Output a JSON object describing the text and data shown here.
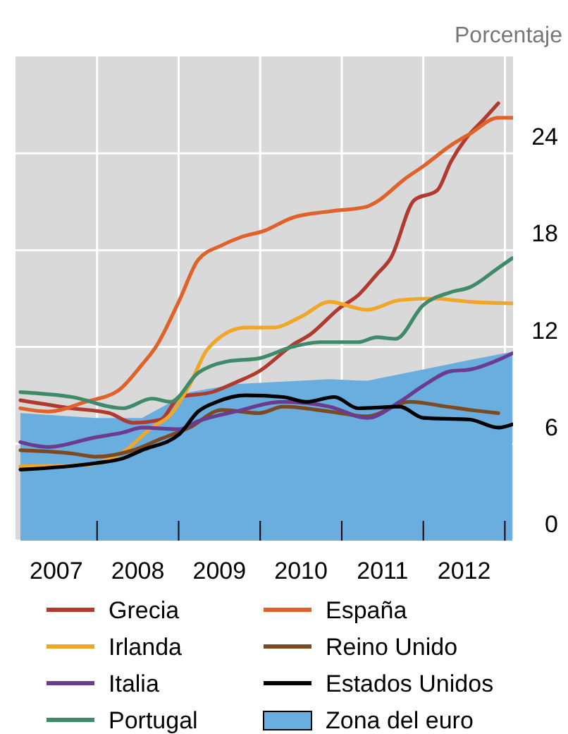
{
  "chart_data": {
    "type": "line",
    "ylabel": "Porcentaje",
    "xlim": [
      2007,
      2013.1
    ],
    "ylim": [
      0,
      30
    ],
    "xticks": [
      {
        "value": 2007.5,
        "label": "2007"
      },
      {
        "value": 2008,
        "label": null
      },
      {
        "value": 2008.5,
        "label": "2008"
      },
      {
        "value": 2009,
        "label": null
      },
      {
        "value": 2009.5,
        "label": "2009"
      },
      {
        "value": 2010,
        "label": null
      },
      {
        "value": 2010.5,
        "label": "2010"
      },
      {
        "value": 2011,
        "label": null
      },
      {
        "value": 2011.5,
        "label": "2011"
      },
      {
        "value": 2012,
        "label": null
      },
      {
        "value": 2012.5,
        "label": "2012"
      },
      {
        "value": 2013,
        "label": null
      }
    ],
    "yticks": [
      0,
      6,
      12,
      18,
      24
    ],
    "grid": true,
    "legend": "bottom",
    "series": [
      {
        "name": "Grecia",
        "color": "#b03a2e",
        "x": [
          2007.06,
          2007.69,
          2008.15,
          2008.44,
          2008.78,
          2009.01,
          2009.41,
          2009.7,
          2009.99,
          2010.39,
          2010.62,
          2010.97,
          2011.2,
          2011.43,
          2011.6,
          2011.89,
          2012.17,
          2012.34,
          2012.52,
          2012.74,
          2012.92
        ],
        "values": [
          8.7,
          8.2,
          7.9,
          7.3,
          7.5,
          8.9,
          9.2,
          9.8,
          10.5,
          12.1,
          12.8,
          14.4,
          15.2,
          16.5,
          17.5,
          21.1,
          21.7,
          23.5,
          24.9,
          26.1,
          27.1
        ]
      },
      {
        "name": "España",
        "color": "#e0622a",
        "x": [
          2007.06,
          2007.4,
          2007.86,
          2008.26,
          2008.55,
          2008.72,
          2009.01,
          2009.24,
          2009.53,
          2009.76,
          2010.05,
          2010.39,
          2010.85,
          2011.31,
          2011.43,
          2011.77,
          2012.0,
          2012.34,
          2012.57,
          2012.92,
          2013.09
        ],
        "values": [
          8.2,
          8.0,
          8.6,
          9.3,
          10.9,
          12.0,
          14.9,
          17.4,
          18.3,
          18.8,
          19.2,
          20.0,
          20.4,
          20.7,
          21.0,
          22.4,
          23.2,
          24.5,
          25.2,
          26.2,
          26.2
        ]
      },
      {
        "name": "Irlanda",
        "color": "#f0a626",
        "x": [
          2007.06,
          2007.86,
          2008.32,
          2008.67,
          2008.9,
          2009.13,
          2009.36,
          2009.82,
          2010.16,
          2010.51,
          2010.85,
          2011.31,
          2011.71,
          2012.12,
          2012.57,
          2013.09
        ],
        "values": [
          4.6,
          4.7,
          5.5,
          7.0,
          7.8,
          9.6,
          11.9,
          13.2,
          13.2,
          13.9,
          14.8,
          14.3,
          14.9,
          15.0,
          14.8,
          14.7
        ]
      },
      {
        "name": "Reino Unido",
        "color": "#7b4a23",
        "x": [
          2007.06,
          2007.69,
          2007.98,
          2008.44,
          2008.78,
          2009.13,
          2009.53,
          2009.99,
          2010.28,
          2010.85,
          2011.31,
          2011.83,
          2012.29,
          2012.57,
          2012.92
        ],
        "values": [
          5.6,
          5.4,
          5.2,
          5.6,
          6.3,
          7.0,
          8.1,
          7.9,
          8.3,
          8.0,
          7.7,
          8.6,
          8.3,
          8.1,
          7.9
        ]
      },
      {
        "name": "Italia",
        "color": "#6b3b8e",
        "x": [
          2007.06,
          2007.4,
          2007.98,
          2008.32,
          2008.55,
          2009.01,
          2009.24,
          2009.7,
          2010.28,
          2010.85,
          2011.31,
          2011.71,
          2012.0,
          2012.34,
          2012.57,
          2012.92,
          2013.09
        ],
        "values": [
          6.1,
          5.8,
          6.4,
          6.7,
          7.0,
          6.9,
          7.4,
          8.0,
          8.6,
          8.3,
          7.6,
          8.6,
          9.6,
          10.5,
          10.6,
          11.2,
          11.6
        ]
      },
      {
        "name": "Estados Unidos",
        "color": "#000000",
        "x": [
          2007.06,
          2007.98,
          2008.32,
          2008.55,
          2009.01,
          2009.24,
          2009.47,
          2009.82,
          2010.28,
          2010.56,
          2010.91,
          2011.2,
          2011.71,
          2012.0,
          2012.57,
          2012.92,
          2013.09
        ],
        "values": [
          4.4,
          4.8,
          5.1,
          5.6,
          6.6,
          8.0,
          8.6,
          9.0,
          8.9,
          8.6,
          8.9,
          8.2,
          8.3,
          7.6,
          7.5,
          7.0,
          7.2
        ]
      },
      {
        "name": "Portugal",
        "color": "#3f8a6a",
        "x": [
          2007.06,
          2007.69,
          2008.32,
          2008.67,
          2008.9,
          2009.24,
          2009.59,
          2009.99,
          2010.39,
          2010.74,
          2011.2,
          2011.43,
          2011.66,
          2012.0,
          2012.34,
          2012.57,
          2012.92,
          2013.09
        ],
        "values": [
          9.2,
          8.9,
          8.2,
          8.8,
          8.6,
          10.4,
          11.1,
          11.3,
          12.0,
          12.3,
          12.3,
          12.6,
          12.5,
          14.6,
          15.4,
          15.7,
          16.9,
          17.5
        ]
      },
      {
        "name": "Zona del euro",
        "type": "area",
        "color": "#6aaee0",
        "x": [
          2007.06,
          2007.98,
          2008.55,
          2009.13,
          2009.7,
          2010.85,
          2011.31,
          2012.0,
          2012.57,
          2013.09
        ],
        "values": [
          7.9,
          7.6,
          7.6,
          9.2,
          9.7,
          10.0,
          9.9,
          10.6,
          11.2,
          11.7
        ]
      }
    ]
  }
}
